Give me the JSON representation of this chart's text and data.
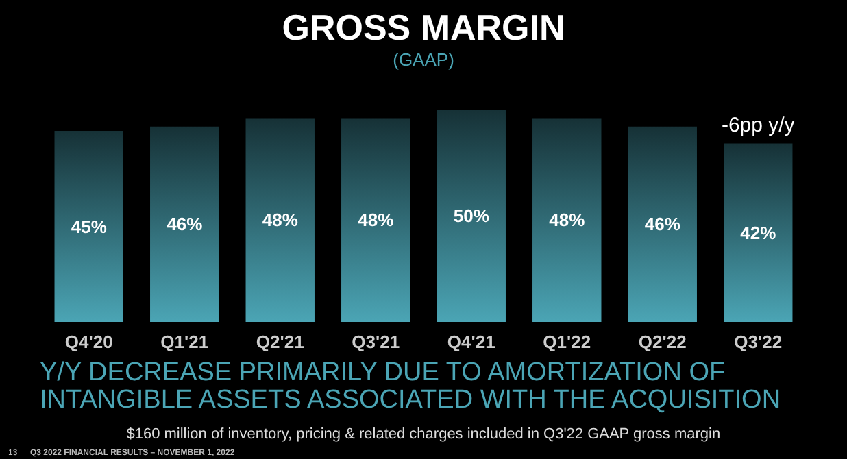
{
  "chart_data": {
    "type": "bar",
    "title": "GROSS MARGIN",
    "subtitle": "(GAAP)",
    "categories": [
      "Q4'20",
      "Q1'21",
      "Q2'21",
      "Q3'21",
      "Q4'21",
      "Q1'22",
      "Q2'22",
      "Q3'22"
    ],
    "values": [
      45,
      46,
      48,
      48,
      50,
      48,
      46,
      42
    ],
    "value_labels": [
      "45%",
      "46%",
      "48%",
      "48%",
      "50%",
      "48%",
      "46%",
      "42%"
    ],
    "color": "#4ba5b5",
    "tick_labels": "x",
    "annotations": [
      {
        "text": "-6pp y/y",
        "x": "Q3'22",
        "y": 42
      },
      "Y/Y DECREASE PRIMARILY DUE TO AMORTIZATION OF INTANGIBLE ASSETS ASSOCIATED WITH THE ACQUISITION",
      "$160 million of inventory, pricing & related charges included in Q3'22 GAAP gross margin",
      "13",
      "Q3 2022 FINANCIAL RESULTS – NOVEMBER 1, 2022"
    ]
  }
}
